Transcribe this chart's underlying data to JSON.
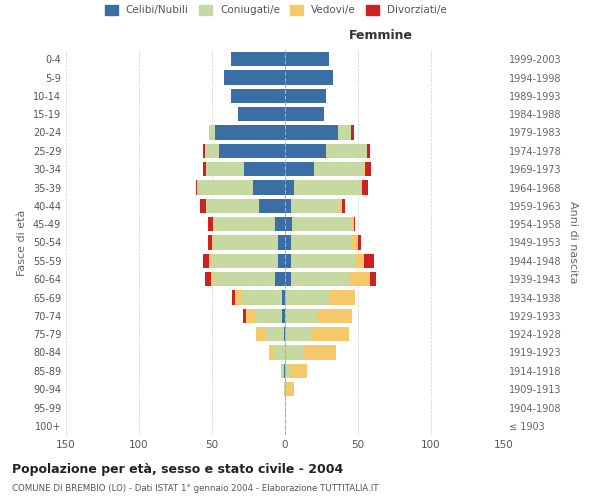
{
  "age_groups": [
    "100+",
    "95-99",
    "90-94",
    "85-89",
    "80-84",
    "75-79",
    "70-74",
    "65-69",
    "60-64",
    "55-59",
    "50-54",
    "45-49",
    "40-44",
    "35-39",
    "30-34",
    "25-29",
    "20-24",
    "15-19",
    "10-14",
    "5-9",
    "0-4"
  ],
  "birth_years": [
    "≤ 1903",
    "1904-1908",
    "1909-1913",
    "1914-1918",
    "1919-1923",
    "1924-1928",
    "1929-1933",
    "1934-1938",
    "1939-1943",
    "1944-1948",
    "1949-1953",
    "1954-1958",
    "1959-1963",
    "1964-1968",
    "1969-1973",
    "1974-1978",
    "1979-1983",
    "1984-1988",
    "1989-1993",
    "1994-1998",
    "1999-2003"
  ],
  "male_celibi": [
    0,
    0,
    0,
    1,
    0,
    1,
    2,
    2,
    7,
    5,
    5,
    7,
    18,
    22,
    28,
    45,
    48,
    32,
    37,
    42,
    37
  ],
  "male_coniugati": [
    0,
    0,
    1,
    2,
    8,
    13,
    18,
    28,
    42,
    46,
    44,
    42,
    36,
    38,
    26,
    10,
    4,
    0,
    0,
    0,
    0
  ],
  "male_vedovi": [
    0,
    0,
    0,
    0,
    3,
    6,
    7,
    4,
    2,
    1,
    1,
    0,
    0,
    0,
    0,
    0,
    0,
    0,
    0,
    0,
    0
  ],
  "male_divorziati": [
    0,
    0,
    0,
    0,
    0,
    0,
    2,
    2,
    4,
    4,
    3,
    4,
    4,
    1,
    2,
    1,
    0,
    0,
    0,
    0,
    0
  ],
  "female_celibi": [
    0,
    0,
    0,
    0,
    0,
    0,
    0,
    0,
    4,
    4,
    4,
    5,
    4,
    6,
    20,
    28,
    36,
    27,
    28,
    33,
    30
  ],
  "female_coniugati": [
    0,
    0,
    1,
    3,
    13,
    18,
    22,
    30,
    40,
    44,
    42,
    40,
    34,
    46,
    34,
    28,
    9,
    0,
    0,
    0,
    0
  ],
  "female_vedovi": [
    0,
    1,
    5,
    12,
    22,
    26,
    24,
    18,
    14,
    6,
    4,
    2,
    1,
    1,
    1,
    0,
    0,
    0,
    0,
    0,
    0
  ],
  "female_divorziati": [
    0,
    0,
    0,
    0,
    0,
    0,
    0,
    0,
    4,
    7,
    2,
    1,
    2,
    4,
    4,
    2,
    2,
    0,
    0,
    0,
    0
  ],
  "colors": {
    "celibi": "#3A6EA5",
    "coniugati": "#C5D9A0",
    "vedovi": "#F5C96A",
    "divorziati": "#CC2222"
  },
  "title": "Popolazione per età, sesso e stato civile - 2004",
  "subtitle": "COMUNE DI BREMBIO (LO) - Dati ISTAT 1° gennaio 2004 - Elaborazione TUTTITALIA.IT",
  "xlabel_right": "Femmine",
  "ylabel_left": "Fasce di età",
  "ylabel_right": "Anni di nascita",
  "xlim": 150,
  "legend_labels": [
    "Celibi/Nubili",
    "Coniugati/e",
    "Vedovi/e",
    "Divorziati/e"
  ],
  "background_color": "#ffffff",
  "grid_color": "#cccccc"
}
